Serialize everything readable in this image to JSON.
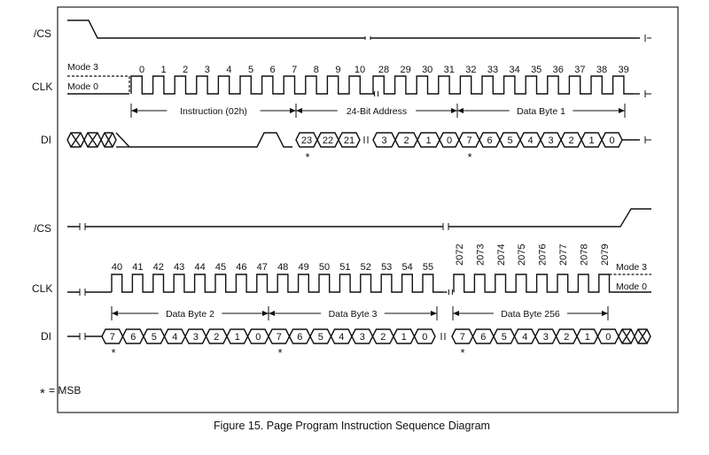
{
  "figure": {
    "caption": "Figure 15. Page Program Instruction Sequence Diagram",
    "legend": "= MSB",
    "msb_marker": "*"
  },
  "signals": {
    "cs": "/CS",
    "clk": "CLK",
    "di": "DI",
    "mode3": "Mode 3",
    "mode0": "Mode 0"
  },
  "panel1": {
    "clk_numbers_a": [
      "0",
      "1",
      "2",
      "3",
      "4",
      "5",
      "6",
      "7",
      "8",
      "9",
      "10"
    ],
    "clk_numbers_b": [
      "28",
      "29",
      "30",
      "31",
      "32",
      "33",
      "34",
      "35",
      "36",
      "37",
      "38",
      "39"
    ],
    "spans": [
      "Instruction (02h)",
      "24-Bit Address",
      "Data Byte 1"
    ],
    "di_address": [
      "23",
      "22",
      "21",
      "3",
      "2",
      "1",
      "0"
    ],
    "di_data": [
      "7",
      "6",
      "5",
      "4",
      "3",
      "2",
      "1",
      "0"
    ]
  },
  "panel2": {
    "clk_numbers_a": [
      "40",
      "41",
      "42",
      "43",
      "44",
      "45",
      "46",
      "47",
      "48",
      "49",
      "50",
      "51",
      "52",
      "53",
      "54",
      "55"
    ],
    "clk_numbers_b": [
      "2072",
      "2073",
      "2074",
      "2075",
      "2076",
      "2077",
      "2078",
      "2079"
    ],
    "spans": [
      "Data Byte 2",
      "Data Byte 3",
      "Data Byte 256"
    ],
    "di_byte": [
      "7",
      "6",
      "5",
      "4",
      "3",
      "2",
      "1",
      "0"
    ]
  }
}
